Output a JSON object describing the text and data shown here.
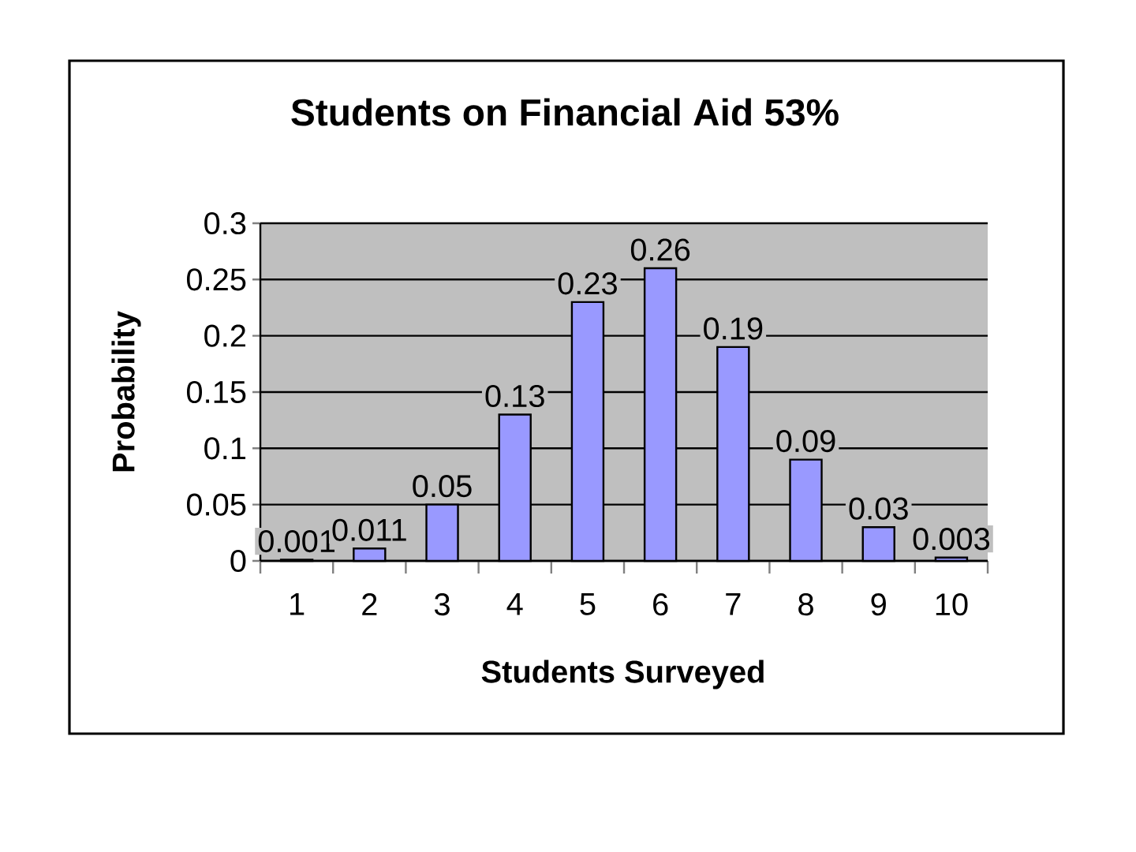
{
  "chart_data": {
    "type": "bar",
    "title": "Students on Financial Aid 53%",
    "xlabel": "Students Surveyed",
    "ylabel": "Probability",
    "categories": [
      "1",
      "2",
      "3",
      "4",
      "5",
      "6",
      "7",
      "8",
      "9",
      "10"
    ],
    "values": [
      0.001,
      0.011,
      0.05,
      0.13,
      0.23,
      0.26,
      0.19,
      0.09,
      0.03,
      0.003
    ],
    "color": "#9999ff",
    "ylim": [
      0,
      0.3
    ],
    "yticks": [
      0,
      0.05,
      0.1,
      0.15,
      0.2,
      0.25,
      0.3
    ],
    "grid": "y",
    "data_labels": true
  }
}
